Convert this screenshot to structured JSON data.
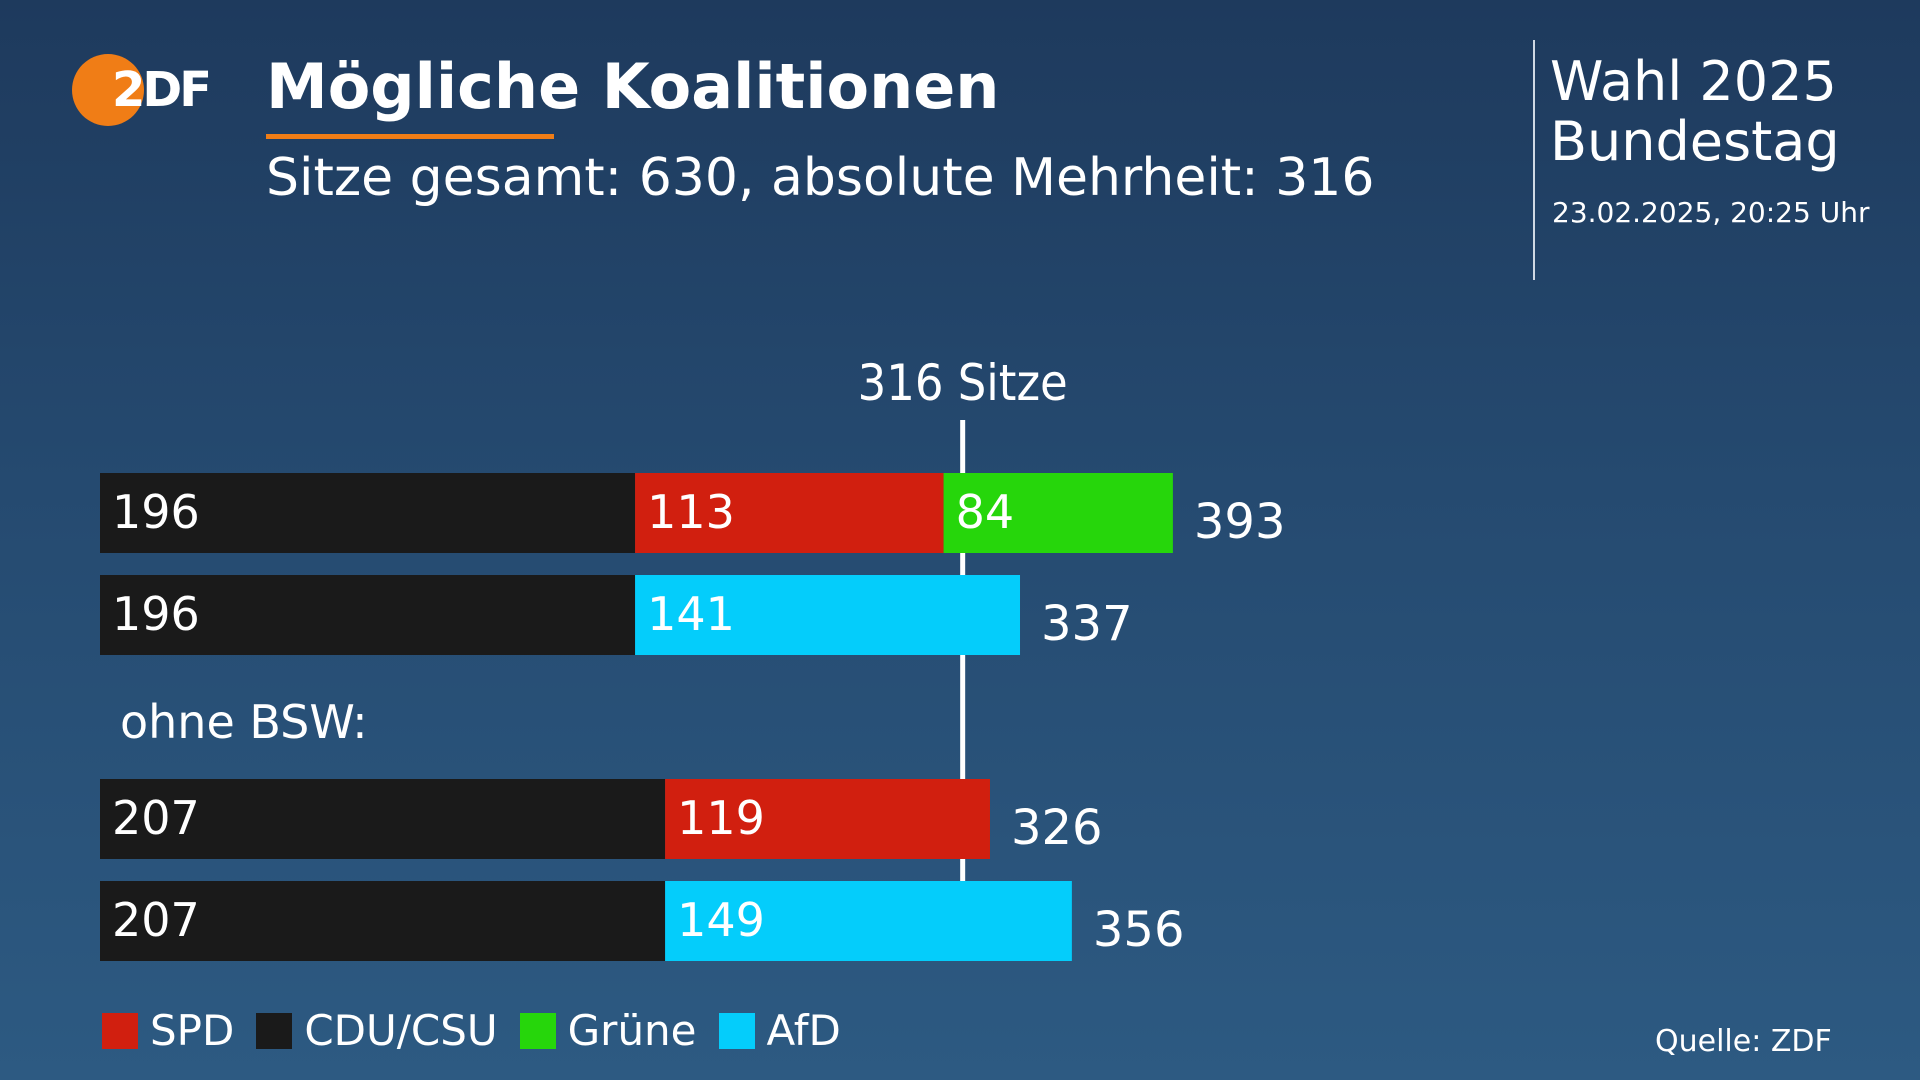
{
  "header": {
    "logo_text": "2DF",
    "title": "Mögliche Koalitionen",
    "subtitle": "Sitze gesamt: 630, absolute Mehrheit: 316",
    "election_line1": "Wahl 2025",
    "election_line2": "Bundestag",
    "timestamp": "23.02.2025, 20:25 Uhr"
  },
  "colors": {
    "accent": "#f07d16",
    "SPD": "#d11f0f",
    "CDU/CSU": "#1a1a1a",
    "Grüne": "#26d60b",
    "AfD": "#04cdfb",
    "threshold_line": "#ffffff"
  },
  "chart_data": {
    "type": "bar",
    "orientation": "horizontal",
    "stacked": true,
    "threshold": {
      "value": 316,
      "label": "316 Sitze"
    },
    "group_label": "ohne BSW:",
    "rows": [
      {
        "segments": [
          {
            "party": "CDU/CSU",
            "value": 196
          },
          {
            "party": "SPD",
            "value": 113
          },
          {
            "party": "Grüne",
            "value": 84
          }
        ],
        "total": 393
      },
      {
        "segments": [
          {
            "party": "CDU/CSU",
            "value": 196
          },
          {
            "party": "AfD",
            "value": 141
          }
        ],
        "total": 337
      },
      {
        "segments": [
          {
            "party": "CDU/CSU",
            "value": 207
          },
          {
            "party": "SPD",
            "value": 119
          }
        ],
        "total": 326
      },
      {
        "segments": [
          {
            "party": "CDU/CSU",
            "value": 207
          },
          {
            "party": "AfD",
            "value": 149
          }
        ],
        "total": 356
      }
    ],
    "legend": [
      "SPD",
      "CDU/CSU",
      "Grüne",
      "AfD"
    ],
    "legend_placement": "bottom-left",
    "grid": false
  },
  "footer": {
    "source": "Quelle: ZDF"
  }
}
